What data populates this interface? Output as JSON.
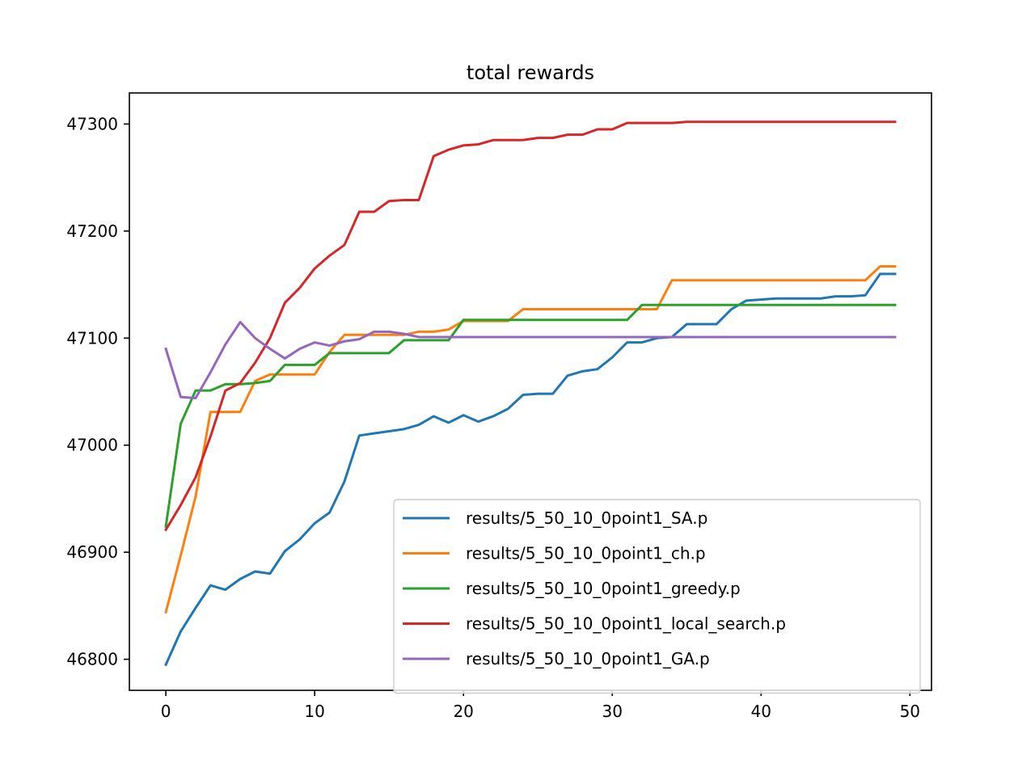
{
  "chart_data": {
    "type": "line",
    "title": "total rewards",
    "xlabel": "",
    "ylabel": "",
    "xlim": [
      -2.45,
      51.45
    ],
    "ylim": [
      46771,
      47329
    ],
    "xticks": [
      0,
      10,
      20,
      30,
      40,
      50
    ],
    "yticks": [
      46800,
      46900,
      47000,
      47100,
      47200,
      47300
    ],
    "grid": false,
    "legend_position": "lower-right",
    "x": [
      0,
      1,
      2,
      3,
      4,
      5,
      6,
      7,
      8,
      9,
      10,
      11,
      12,
      13,
      14,
      15,
      16,
      17,
      18,
      19,
      20,
      21,
      22,
      23,
      24,
      25,
      26,
      27,
      28,
      29,
      30,
      31,
      32,
      33,
      34,
      35,
      36,
      37,
      38,
      39,
      40,
      41,
      42,
      43,
      44,
      45,
      46,
      47,
      48,
      49
    ],
    "series": [
      {
        "name": "results/5_50_10_0point1_SA.p",
        "color": "#1f77b4",
        "values": [
          46795,
          46826,
          46848,
          46869,
          46865,
          46875,
          46882,
          46880,
          46901,
          46912,
          46927,
          46937,
          46966,
          47009,
          47011,
          47013,
          47015,
          47019,
          47027,
          47021,
          47028,
          47022,
          47027,
          47034,
          47047,
          47048,
          47048,
          47065,
          47069,
          47071,
          47082,
          47096,
          47096,
          47100,
          47101,
          47113,
          47113,
          47113,
          47127,
          47135,
          47136,
          47137,
          47137,
          47137,
          47137,
          47139,
          47139,
          47140,
          47160,
          47160
        ]
      },
      {
        "name": "results/5_50_10_0point1_ch.p",
        "color": "#ff7f0e",
        "values": [
          46844,
          46897,
          46952,
          47031,
          47031,
          47031,
          47060,
          47066,
          47066,
          47066,
          47066,
          47087,
          47103,
          47103,
          47103,
          47103,
          47103,
          47106,
          47106,
          47108,
          47116,
          47116,
          47116,
          47116,
          47127,
          47127,
          47127,
          47127,
          47127,
          47127,
          47127,
          47127,
          47127,
          47127,
          47154,
          47154,
          47154,
          47154,
          47154,
          47154,
          47154,
          47154,
          47154,
          47154,
          47154,
          47154,
          47154,
          47154,
          47167,
          47167
        ]
      },
      {
        "name": "results/5_50_10_0point1_greedy.p",
        "color": "#2ca02c",
        "values": [
          46924,
          47020,
          47051,
          47051,
          47057,
          47057,
          47058,
          47060,
          47075,
          47075,
          47075,
          47086,
          47086,
          47086,
          47086,
          47086,
          47098,
          47098,
          47098,
          47098,
          47117,
          47117,
          47117,
          47117,
          47117,
          47117,
          47117,
          47117,
          47117,
          47117,
          47117,
          47117,
          47131,
          47131,
          47131,
          47131,
          47131,
          47131,
          47131,
          47131,
          47131,
          47131,
          47131,
          47131,
          47131,
          47131,
          47131,
          47131,
          47131,
          47131
        ]
      },
      {
        "name": "results/5_50_10_0point1_local_search.p",
        "color": "#d62728",
        "values": [
          46921,
          46944,
          46970,
          47008,
          47051,
          47058,
          47077,
          47100,
          47133,
          47147,
          47165,
          47177,
          47187,
          47218,
          47218,
          47228,
          47229,
          47229,
          47270,
          47276,
          47280,
          47281,
          47285,
          47285,
          47285,
          47287,
          47287,
          47290,
          47290,
          47295,
          47295,
          47301,
          47301,
          47301,
          47301,
          47302,
          47302,
          47302,
          47302,
          47302,
          47302,
          47302,
          47302,
          47302,
          47302,
          47302,
          47302,
          47302,
          47302,
          47302
        ]
      },
      {
        "name": "results/5_50_10_0point1_GA.p",
        "color": "#9467bd",
        "values": [
          47090,
          47045,
          47044,
          47068,
          47094,
          47115,
          47100,
          47090,
          47081,
          47090,
          47096,
          47093,
          47097,
          47099,
          47106,
          47106,
          47104,
          47101,
          47101,
          47101,
          47101,
          47101,
          47101,
          47101,
          47101,
          47101,
          47101,
          47101,
          47101,
          47101,
          47101,
          47101,
          47101,
          47101,
          47101,
          47101,
          47101,
          47101,
          47101,
          47101,
          47101,
          47101,
          47101,
          47101,
          47101,
          47101,
          47101,
          47101,
          47101,
          47101
        ]
      }
    ]
  }
}
